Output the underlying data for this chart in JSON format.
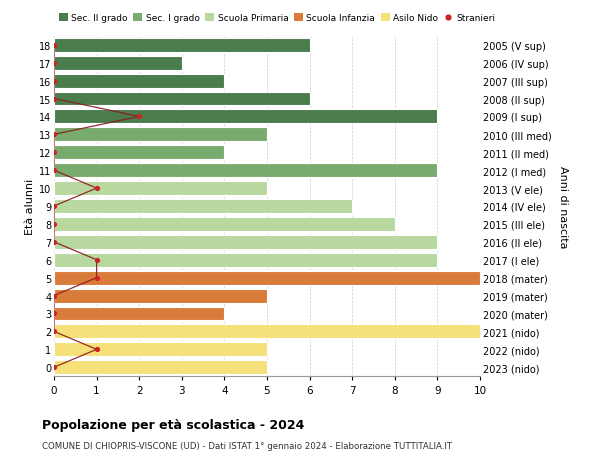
{
  "ages": [
    18,
    17,
    16,
    15,
    14,
    13,
    12,
    11,
    10,
    9,
    8,
    7,
    6,
    5,
    4,
    3,
    2,
    1,
    0
  ],
  "right_labels": [
    "2005 (V sup)",
    "2006 (IV sup)",
    "2007 (III sup)",
    "2008 (II sup)",
    "2009 (I sup)",
    "2010 (III med)",
    "2011 (II med)",
    "2012 (I med)",
    "2013 (V ele)",
    "2014 (IV ele)",
    "2015 (III ele)",
    "2016 (II ele)",
    "2017 (I ele)",
    "2018 (mater)",
    "2019 (mater)",
    "2020 (mater)",
    "2021 (nido)",
    "2022 (nido)",
    "2023 (nido)"
  ],
  "bar_values": [
    6,
    3,
    4,
    6,
    9,
    5,
    4,
    9,
    5,
    7,
    8,
    9,
    9,
    10,
    5,
    4,
    10,
    5,
    5
  ],
  "bar_colors": [
    "#4a7c4e",
    "#4a7c4e",
    "#4a7c4e",
    "#4a7c4e",
    "#4a7c4e",
    "#7aab6e",
    "#7aab6e",
    "#7aab6e",
    "#b8d8a0",
    "#b8d8a0",
    "#b8d8a0",
    "#b8d8a0",
    "#b8d8a0",
    "#d97b3a",
    "#d97b3a",
    "#d97b3a",
    "#f5e07a",
    "#f5e07a",
    "#f5e07a"
  ],
  "stranieri_x": [
    0,
    0,
    0,
    0,
    2,
    0,
    0,
    0,
    1,
    0,
    0,
    0,
    1,
    1,
    0,
    0,
    0,
    1,
    0
  ],
  "legend_labels": [
    "Sec. II grado",
    "Sec. I grado",
    "Scuola Primaria",
    "Scuola Infanzia",
    "Asilo Nido",
    "Stranieri"
  ],
  "legend_colors": [
    "#4a7c4e",
    "#7aab6e",
    "#b8d8a0",
    "#d97b3a",
    "#f5e07a",
    "#cc2222"
  ],
  "title": "Popolazione per età scolastica - 2024",
  "subtitle": "COMUNE DI CHIOPRIS-VISCONE (UD) - Dati ISTAT 1° gennaio 2024 - Elaborazione TUTTITALIA.IT",
  "ylabel_left": "Età alunni",
  "ylabel_right": "Anni di nascita",
  "xlim": [
    0,
    10
  ],
  "ylim": [
    -0.5,
    18.5
  ],
  "background_color": "#ffffff",
  "grid_color": "#cccccc"
}
